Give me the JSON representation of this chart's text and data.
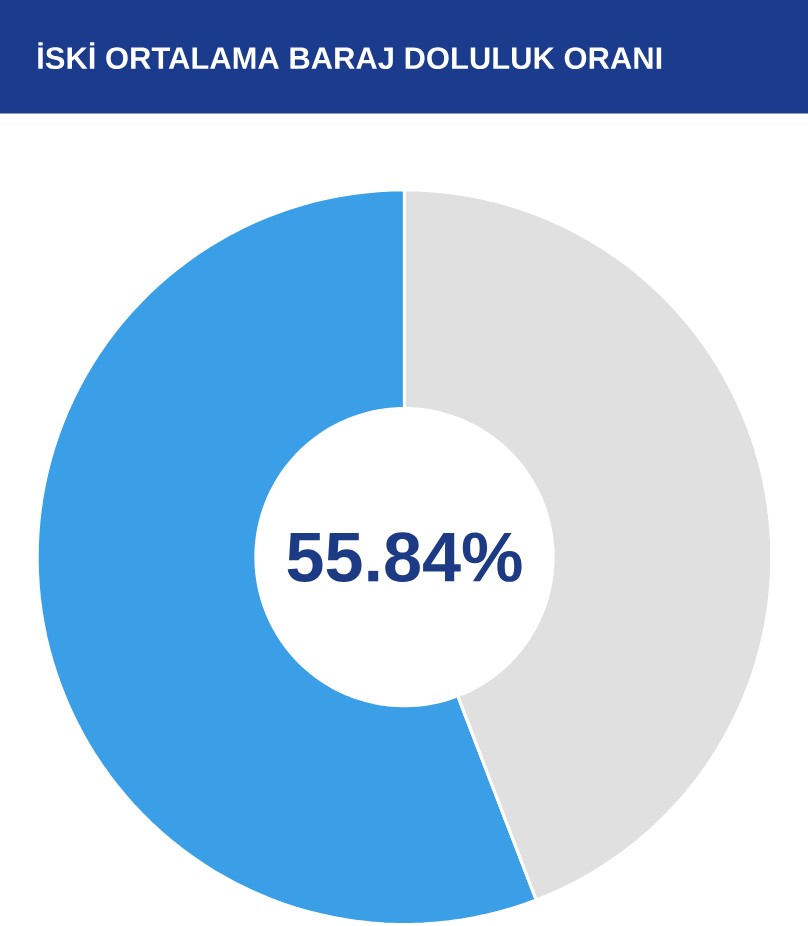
{
  "chart_data": {
    "type": "donut",
    "title": "İSKİ ORTALAMA BARAJ DOLULUK ORANI",
    "categories": [
      null,
      null
    ],
    "values": [
      55.84,
      44.16
    ],
    "colors": [
      "#3a9fe6",
      "#e0e0e0"
    ],
    "annotations": [
      "55.84%"
    ]
  }
}
